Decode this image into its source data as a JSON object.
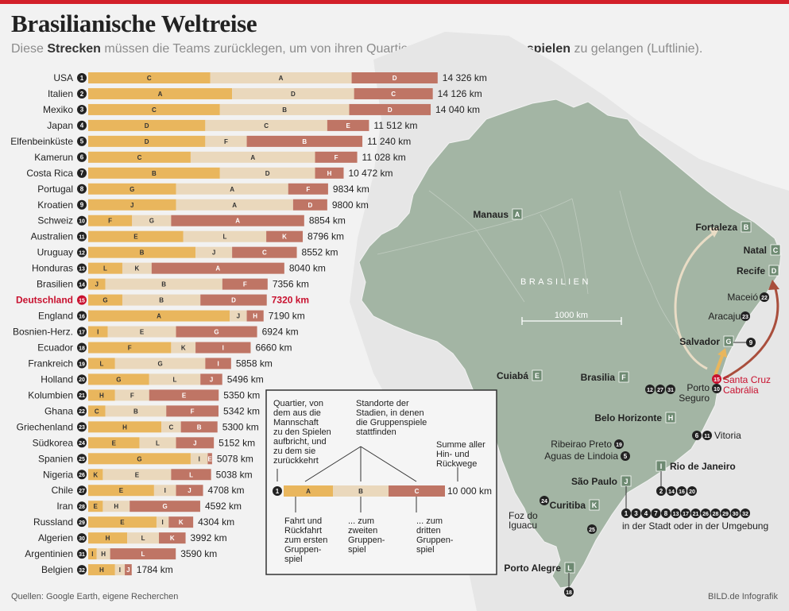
{
  "title": "Brasilianische Weltreise",
  "subtitle": {
    "p1": "Diese ",
    "b1": "Strecken",
    "p2": " müssen die Teams zurücklegen, um von ihren Quartieren ",
    "b2": "zu den Gruppenspielen",
    "p3": " zu gelangen (Luftlinie)."
  },
  "colors": {
    "seg1": "#e9b65d",
    "seg2": "#ead8bc",
    "seg3": "#bf7565",
    "highlight": "#c8102e",
    "land": "#a3b5a4",
    "sea": "#f2f2f2"
  },
  "chart_data": {
    "type": "bar",
    "stacked": true,
    "unit": "km",
    "highlight": "Deutschland",
    "series_names": [
      "zum ersten Gruppenspiel",
      "zum zweiten Gruppenspiel",
      "zum dritten Gruppenspiel"
    ],
    "rows": [
      {
        "team": "USA",
        "quarter": "1",
        "values": [
          5000,
          5800,
          3526
        ],
        "stadiums": [
          "C",
          "A",
          "D"
        ],
        "total": "14 326 km"
      },
      {
        "team": "Italien",
        "quarter": "2",
        "values": [
          5900,
          5000,
          3226
        ],
        "stadiums": [
          "A",
          "D",
          "C"
        ],
        "total": "14 126 km"
      },
      {
        "team": "Mexiko",
        "quarter": "3",
        "values": [
          5400,
          5300,
          3340
        ],
        "stadiums": [
          "C",
          "B",
          "D"
        ],
        "total": "14 040 km"
      },
      {
        "team": "Japan",
        "quarter": "4",
        "values": [
          4800,
          5000,
          1712
        ],
        "stadiums": [
          "D",
          "C",
          "E"
        ],
        "total": "11 512 km"
      },
      {
        "team": "Elfenbeinküste",
        "quarter": "5",
        "values": [
          4800,
          1700,
          4740
        ],
        "stadiums": [
          "D",
          "F",
          "B"
        ],
        "total": "11 240 km"
      },
      {
        "team": "Kamerun",
        "quarter": "6",
        "values": [
          4200,
          5100,
          1728
        ],
        "stadiums": [
          "C",
          "A",
          "F"
        ],
        "total": "11 028 km"
      },
      {
        "team": "Costa Rica",
        "quarter": "7",
        "values": [
          5400,
          3900,
          1172
        ],
        "stadiums": [
          "B",
          "D",
          "H"
        ],
        "total": "10 472 km"
      },
      {
        "team": "Portugal",
        "quarter": "8",
        "values": [
          3600,
          4600,
          1634
        ],
        "stadiums": [
          "G",
          "A",
          "F"
        ],
        "total": "9834 km"
      },
      {
        "team": "Kroatien",
        "quarter": "9",
        "values": [
          3600,
          4800,
          1400
        ],
        "stadiums": [
          "J",
          "A",
          "D"
        ],
        "total": "9800 km"
      },
      {
        "team": "Schweiz",
        "quarter": "10",
        "values": [
          1800,
          1600,
          5454
        ],
        "stadiums": [
          "F",
          "G",
          "A"
        ],
        "total": "8854 km"
      },
      {
        "team": "Australien",
        "quarter": "11",
        "values": [
          3900,
          3400,
          1496
        ],
        "stadiums": [
          "E",
          "L",
          "K"
        ],
        "total": "8796 km"
      },
      {
        "team": "Uruguay",
        "quarter": "12",
        "values": [
          4400,
          1500,
          2652
        ],
        "stadiums": [
          "B",
          "J",
          "C"
        ],
        "total": "8552 km"
      },
      {
        "team": "Honduras",
        "quarter": "13",
        "values": [
          1400,
          1200,
          5440
        ],
        "stadiums": [
          "L",
          "K",
          "A"
        ],
        "total": "8040 km"
      },
      {
        "team": "Brasilien",
        "quarter": "14",
        "values": [
          700,
          4800,
          1856
        ],
        "stadiums": [
          "J",
          "B",
          "F"
        ],
        "total": "7356 km"
      },
      {
        "team": "Deutschland",
        "quarter": "15",
        "values": [
          1400,
          3200,
          2720
        ],
        "stadiums": [
          "G",
          "B",
          "D"
        ],
        "total": "7320 km"
      },
      {
        "team": "England",
        "quarter": "16",
        "values": [
          5800,
          700,
          690
        ],
        "stadiums": [
          "A",
          "J",
          "H"
        ],
        "total": "7190 km"
      },
      {
        "team": "Bosnien-Herz.",
        "quarter": "17",
        "values": [
          800,
          2800,
          3324
        ],
        "stadiums": [
          "I",
          "E",
          "G"
        ],
        "total": "6924 km"
      },
      {
        "team": "Ecuador",
        "quarter": "18",
        "values": [
          3400,
          1000,
          2260
        ],
        "stadiums": [
          "F",
          "K",
          "I"
        ],
        "total": "6660 km"
      },
      {
        "team": "Frankreich",
        "quarter": "19",
        "values": [
          1100,
          3700,
          1058
        ],
        "stadiums": [
          "L",
          "G",
          "I"
        ],
        "total": "5858 km"
      },
      {
        "team": "Holland",
        "quarter": "20",
        "values": [
          2500,
          2100,
          896
        ],
        "stadiums": [
          "G",
          "L",
          "J"
        ],
        "total": "5496 km"
      },
      {
        "team": "Kolumbien",
        "quarter": "21",
        "values": [
          1100,
          1400,
          2850
        ],
        "stadiums": [
          "H",
          "F",
          "E"
        ],
        "total": "5350 km"
      },
      {
        "team": "Ghana",
        "quarter": "22",
        "values": [
          700,
          2500,
          2142
        ],
        "stadiums": [
          "C",
          "B",
          "F"
        ],
        "total": "5342 km"
      },
      {
        "team": "Griechenland",
        "quarter": "23",
        "values": [
          3000,
          800,
          1500
        ],
        "stadiums": [
          "H",
          "C",
          "B"
        ],
        "total": "5300 km"
      },
      {
        "team": "Südkorea",
        "quarter": "24",
        "values": [
          2100,
          1500,
          1552
        ],
        "stadiums": [
          "E",
          "L",
          "J"
        ],
        "total": "5152 km"
      },
      {
        "team": "Spanien",
        "quarter": "25",
        "values": [
          4200,
          700,
          178
        ],
        "stadiums": [
          "G",
          "I",
          "E"
        ],
        "total": "5078 km"
      },
      {
        "team": "Nigeria",
        "quarter": "26",
        "values": [
          600,
          2800,
          1638
        ],
        "stadiums": [
          "K",
          "E",
          "L"
        ],
        "total": "5038 km"
      },
      {
        "team": "Chile",
        "quarter": "27",
        "values": [
          2700,
          900,
          1108
        ],
        "stadiums": [
          "E",
          "I",
          "J"
        ],
        "total": "4708 km"
      },
      {
        "team": "Iran",
        "quarter": "28",
        "values": [
          600,
          1100,
          2892
        ],
        "stadiums": [
          "E",
          "H",
          "G"
        ],
        "total": "4592 km"
      },
      {
        "team": "Russland",
        "quarter": "29",
        "values": [
          2800,
          500,
          1004
        ],
        "stadiums": [
          "E",
          "I",
          "K"
        ],
        "total": "4304 km"
      },
      {
        "team": "Algerien",
        "quarter": "30",
        "values": [
          1600,
          1300,
          1092
        ],
        "stadiums": [
          "H",
          "L",
          "K"
        ],
        "total": "3992 km"
      },
      {
        "team": "Argentinien",
        "quarter": "31",
        "values": [
          350,
          550,
          2690
        ],
        "stadiums": [
          "I",
          "H",
          "L"
        ],
        "total": "3590 km"
      },
      {
        "team": "Belgien",
        "quarter": "32",
        "values": [
          1100,
          400,
          284
        ],
        "stadiums": [
          "H",
          "I",
          "J"
        ],
        "total": "1784 km"
      }
    ]
  },
  "legend": {
    "quarter_text": [
      "Quartier, von",
      "dem aus die",
      "Mannschaft",
      "zu den Spielen",
      "aufbricht, und",
      "zu dem sie",
      "zurückkehrt"
    ],
    "stadium_text": [
      "Standorte der",
      "Stadien, in denen",
      "die Gruppenspiele",
      "stattfinden"
    ],
    "sum_text": [
      "Summe aller",
      "Hin- und",
      "Rückwege"
    ],
    "example_quarter": "1",
    "example_letters": [
      "A",
      "B",
      "C"
    ],
    "example_total": "10 000 km",
    "first_text": [
      "Fahrt und",
      "Rückfahrt",
      "zum ersten",
      "Gruppen-",
      "spiel"
    ],
    "second_text": [
      "... zum",
      "zweiten",
      "Gruppen-",
      "spiel"
    ],
    "third_text": [
      "... zum",
      "dritten",
      "Gruppen-",
      "spiel"
    ]
  },
  "map": {
    "country_label": "BRASILIEN",
    "scale_label": "1000 km",
    "stadiums": [
      {
        "city": "Manaus",
        "letter": "A"
      },
      {
        "city": "Fortaleza",
        "letter": "B"
      },
      {
        "city": "Natal",
        "letter": "C"
      },
      {
        "city": "Recife",
        "letter": "D"
      },
      {
        "city": "Cuiabá",
        "letter": "E"
      },
      {
        "city": "Brasilia",
        "letter": "F"
      },
      {
        "city": "Salvador",
        "letter": "G"
      },
      {
        "city": "Belo Horizonte",
        "letter": "H"
      },
      {
        "city": "Rio de Janeiro",
        "letter": "I"
      },
      {
        "city": "São Paulo",
        "letter": "J"
      },
      {
        "city": "Curitiba",
        "letter": "K"
      },
      {
        "city": "Porto Alegre",
        "letter": "L"
      }
    ],
    "places": [
      {
        "name": "Maceió",
        "quarters": [
          "22"
        ]
      },
      {
        "name": "Aracaju",
        "quarters": [
          "23"
        ]
      },
      {
        "name": "Salvador",
        "quarters": [
          "9"
        ]
      },
      {
        "name": "Santa Cruz",
        "name2": "Cabrália",
        "quarters": [
          "15"
        ]
      },
      {
        "name": "Porto",
        "name2": "Seguro",
        "quarters": [
          "10"
        ]
      },
      {
        "name": "Belo Horizonte",
        "quarters": [
          "12",
          "27",
          "31"
        ]
      },
      {
        "name": "Vitoria",
        "quarters": [
          "6",
          "11"
        ]
      },
      {
        "name": "Ribeirao Preto",
        "quarters": [
          "19"
        ]
      },
      {
        "name": "Aguas de Lindoia",
        "quarters": [
          "5"
        ]
      },
      {
        "name": "Rio de Janeiro",
        "quarters": [
          "2",
          "14",
          "16",
          "20"
        ]
      },
      {
        "name": "Curitiba",
        "quarters": [
          "24",
          "25"
        ]
      },
      {
        "name": "Foz do",
        "name2": "Iguacu",
        "quarters": []
      },
      {
        "name": "Porto Alegre",
        "quarters": [
          "18"
        ]
      }
    ],
    "sao_paulo_quarters": [
      "1",
      "3",
      "4",
      "7",
      "8",
      "13",
      "17",
      "21",
      "26",
      "28",
      "29",
      "30",
      "32"
    ],
    "sao_paulo_note": "in der Stadt oder in der Umgebung"
  },
  "source": "Quellen: Google Earth, eigene Recherchen",
  "credit": "BILD.de Infografik"
}
